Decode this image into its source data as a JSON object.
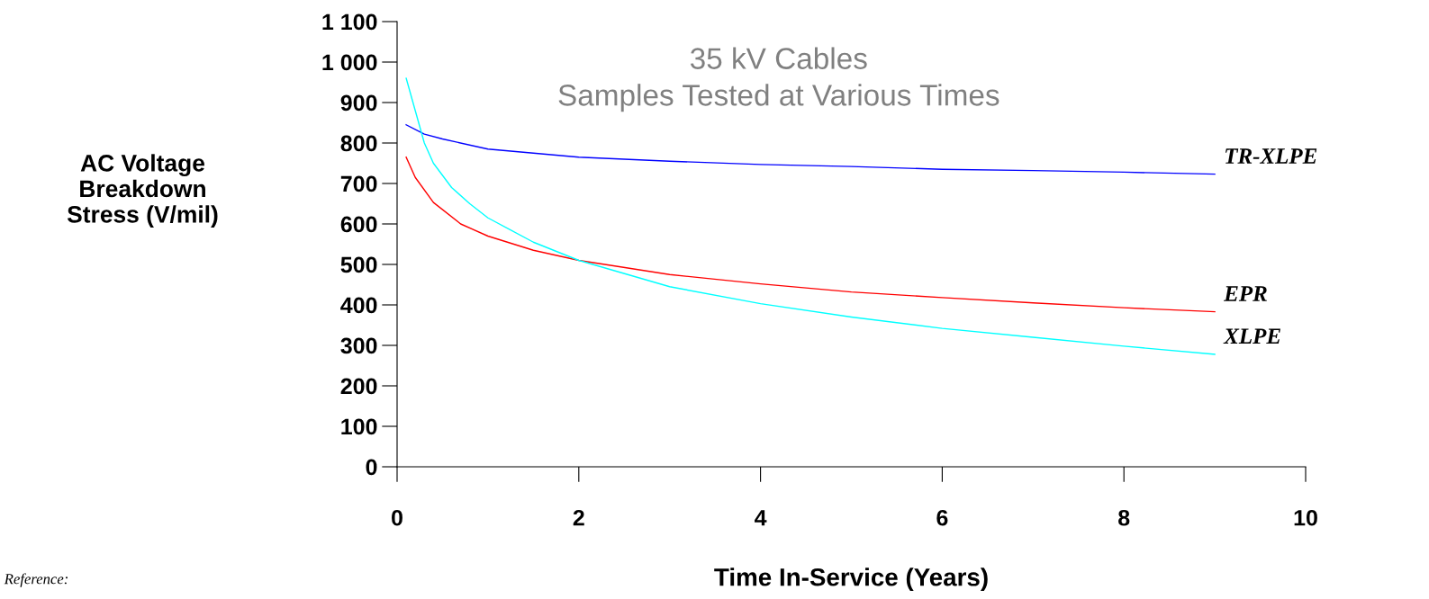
{
  "chart_data": {
    "type": "line",
    "title": "35 kV Cables\nSamples Tested at Various Times",
    "xlabel": "Time In-Service (Years)",
    "ylabel": "AC Voltage\nBreakdown\nStress (V/mil)",
    "xlim": [
      0,
      10
    ],
    "xticks": [
      0,
      2,
      4,
      6,
      8,
      10
    ],
    "ylim": [
      0,
      1100
    ],
    "yticks": [
      0,
      100,
      200,
      300,
      400,
      500,
      600,
      700,
      800,
      900,
      {
        "value": 1000,
        "label": "1 000"
      },
      {
        "value": 1100,
        "label": "1 100"
      }
    ],
    "grid": false,
    "legend": false,
    "marker": "none",
    "line_style": "solid",
    "annotations": [
      "Reference:"
    ],
    "series": [
      {
        "name": "TR-XLPE",
        "color": "#0000ff",
        "x": [
          0.1,
          0.3,
          0.5,
          1,
          1.5,
          2,
          3,
          4,
          5,
          6,
          7,
          8,
          9
        ],
        "values": [
          845,
          822,
          810,
          785,
          775,
          765,
          755,
          747,
          742,
          735,
          732,
          728,
          723
        ]
      },
      {
        "name": "EPR",
        "color": "#ff0000",
        "x": [
          0.1,
          0.2,
          0.4,
          0.7,
          1,
          1.5,
          2,
          3,
          4,
          5,
          6,
          7,
          8,
          9
        ],
        "values": [
          765,
          715,
          653,
          600,
          570,
          535,
          510,
          475,
          452,
          432,
          418,
          405,
          393,
          383
        ]
      },
      {
        "name": "XLPE",
        "color": "#00ffff",
        "x": [
          0.1,
          0.2,
          0.3,
          0.4,
          0.6,
          0.8,
          1,
          1.5,
          2,
          3,
          4,
          5,
          6,
          7,
          8,
          9
        ],
        "values": [
          960,
          880,
          800,
          750,
          690,
          650,
          615,
          555,
          510,
          445,
          403,
          370,
          342,
          320,
          298,
          278
        ]
      }
    ]
  }
}
